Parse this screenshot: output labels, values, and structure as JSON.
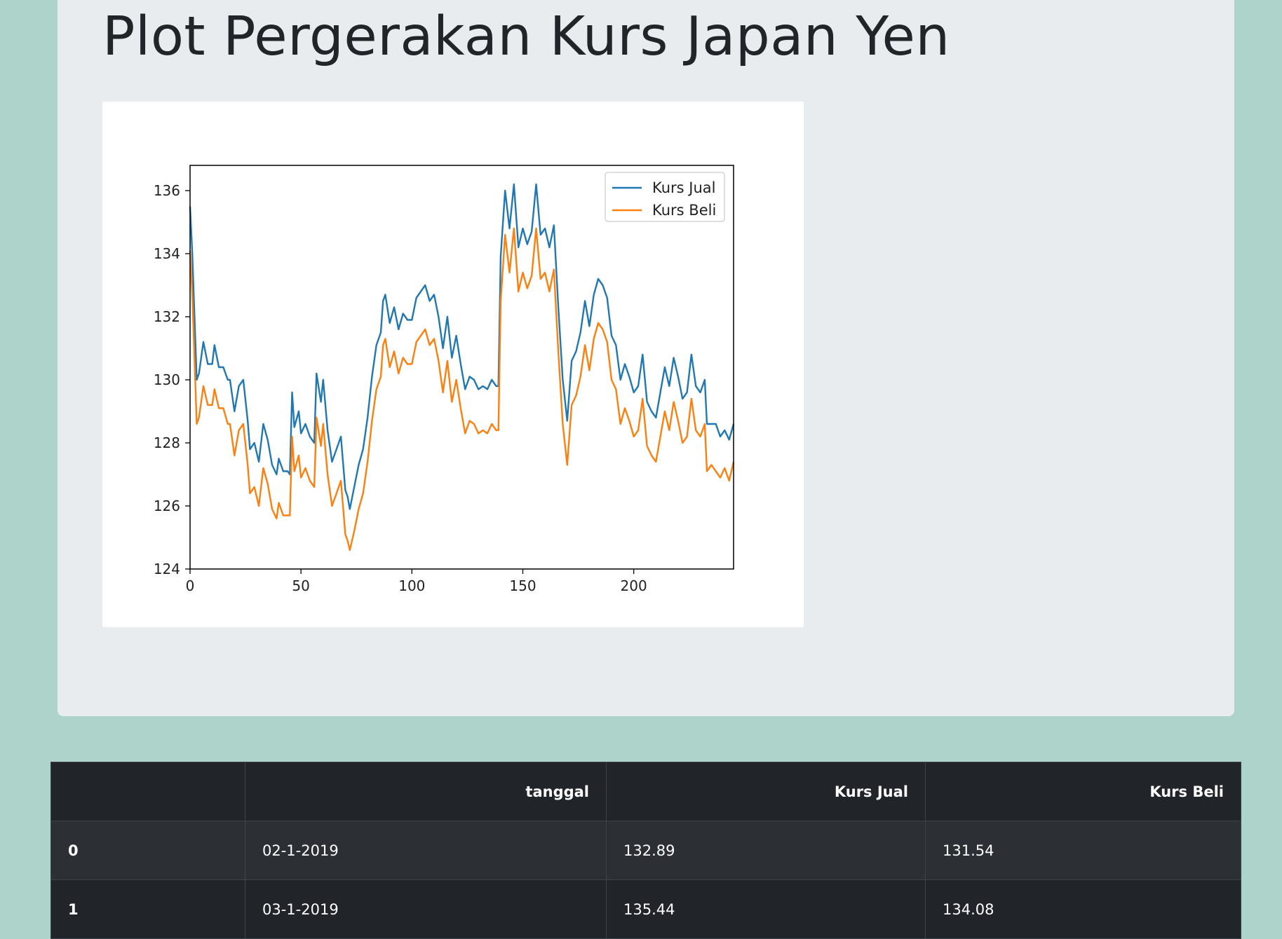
{
  "page": {
    "title": "Plot Pergerakan Kurs Japan Yen"
  },
  "chart_data": {
    "type": "line",
    "title": "",
    "xlabel": "",
    "ylabel": "",
    "xlim": [
      0,
      245
    ],
    "ylim": [
      124,
      136.8
    ],
    "xticks": [
      0,
      50,
      100,
      150,
      200
    ],
    "yticks": [
      124,
      126,
      128,
      130,
      132,
      134,
      136
    ],
    "legend_position": "top-right",
    "grid": false,
    "series": [
      {
        "name": "Kurs Jual",
        "color": "#1f77b4",
        "points": [
          [
            0,
            135.5
          ],
          [
            1,
            134.0
          ],
          [
            3,
            130.0
          ],
          [
            4,
            130.2
          ],
          [
            6,
            131.2
          ],
          [
            8,
            130.5
          ],
          [
            10,
            130.5
          ],
          [
            11,
            131.1
          ],
          [
            13,
            130.4
          ],
          [
            15,
            130.4
          ],
          [
            17,
            130.0
          ],
          [
            18,
            130.0
          ],
          [
            20,
            129.0
          ],
          [
            22,
            129.8
          ],
          [
            24,
            130.0
          ],
          [
            26,
            128.7
          ],
          [
            27,
            127.8
          ],
          [
            29,
            128.0
          ],
          [
            31,
            127.4
          ],
          [
            33,
            128.6
          ],
          [
            35,
            128.1
          ],
          [
            37,
            127.3
          ],
          [
            39,
            127.0
          ],
          [
            40,
            127.5
          ],
          [
            42,
            127.1
          ],
          [
            44,
            127.1
          ],
          [
            45,
            127.0
          ],
          [
            46,
            129.6
          ],
          [
            47,
            128.5
          ],
          [
            49,
            129.0
          ],
          [
            50,
            128.3
          ],
          [
            52,
            128.6
          ],
          [
            54,
            128.2
          ],
          [
            56,
            128.0
          ],
          [
            57,
            130.2
          ],
          [
            59,
            129.3
          ],
          [
            60,
            130.0
          ],
          [
            62,
            128.4
          ],
          [
            64,
            127.4
          ],
          [
            66,
            127.8
          ],
          [
            68,
            128.2
          ],
          [
            70,
            126.5
          ],
          [
            71,
            126.3
          ],
          [
            72,
            125.9
          ],
          [
            74,
            126.6
          ],
          [
            76,
            127.3
          ],
          [
            78,
            127.8
          ],
          [
            80,
            128.8
          ],
          [
            82,
            130.1
          ],
          [
            84,
            131.1
          ],
          [
            86,
            131.5
          ],
          [
            87,
            132.5
          ],
          [
            88,
            132.7
          ],
          [
            90,
            131.8
          ],
          [
            92,
            132.3
          ],
          [
            94,
            131.6
          ],
          [
            96,
            132.1
          ],
          [
            98,
            131.9
          ],
          [
            100,
            131.9
          ],
          [
            102,
            132.6
          ],
          [
            104,
            132.8
          ],
          [
            106,
            133.0
          ],
          [
            108,
            132.5
          ],
          [
            110,
            132.7
          ],
          [
            112,
            132.0
          ],
          [
            114,
            131.0
          ],
          [
            116,
            132.0
          ],
          [
            118,
            130.7
          ],
          [
            120,
            131.4
          ],
          [
            122,
            130.5
          ],
          [
            124,
            129.7
          ],
          [
            126,
            130.1
          ],
          [
            128,
            130.0
          ],
          [
            130,
            129.7
          ],
          [
            132,
            129.8
          ],
          [
            134,
            129.7
          ],
          [
            136,
            130.0
          ],
          [
            138,
            129.8
          ],
          [
            139,
            129.8
          ],
          [
            140,
            133.9
          ],
          [
            142,
            136.0
          ],
          [
            144,
            134.8
          ],
          [
            146,
            136.2
          ],
          [
            148,
            134.2
          ],
          [
            150,
            134.8
          ],
          [
            152,
            134.3
          ],
          [
            154,
            134.7
          ],
          [
            156,
            136.2
          ],
          [
            158,
            134.6
          ],
          [
            160,
            134.8
          ],
          [
            162,
            134.2
          ],
          [
            164,
            134.9
          ],
          [
            166,
            132.3
          ],
          [
            168,
            130.0
          ],
          [
            170,
            128.7
          ],
          [
            172,
            130.6
          ],
          [
            174,
            130.9
          ],
          [
            176,
            131.5
          ],
          [
            178,
            132.5
          ],
          [
            180,
            131.7
          ],
          [
            182,
            132.7
          ],
          [
            184,
            133.2
          ],
          [
            186,
            133.0
          ],
          [
            188,
            132.6
          ],
          [
            190,
            131.4
          ],
          [
            192,
            131.1
          ],
          [
            194,
            130.0
          ],
          [
            196,
            130.5
          ],
          [
            198,
            130.1
          ],
          [
            200,
            129.6
          ],
          [
            202,
            129.8
          ],
          [
            204,
            130.8
          ],
          [
            206,
            129.3
          ],
          [
            208,
            129.0
          ],
          [
            210,
            128.8
          ],
          [
            212,
            129.6
          ],
          [
            214,
            130.4
          ],
          [
            216,
            129.8
          ],
          [
            218,
            130.7
          ],
          [
            220,
            130.1
          ],
          [
            222,
            129.4
          ],
          [
            224,
            129.6
          ],
          [
            226,
            130.8
          ],
          [
            228,
            129.8
          ],
          [
            230,
            129.6
          ],
          [
            232,
            130.0
          ],
          [
            233,
            128.6
          ],
          [
            235,
            128.6
          ],
          [
            237,
            128.6
          ],
          [
            239,
            128.2
          ],
          [
            241,
            128.4
          ],
          [
            243,
            128.1
          ],
          [
            245,
            128.6
          ]
        ]
      },
      {
        "name": "Kurs Beli",
        "color": "#ff7f0e",
        "points": [
          [
            0,
            134.1
          ],
          [
            1,
            132.7
          ],
          [
            3,
            128.6
          ],
          [
            4,
            128.8
          ],
          [
            6,
            129.8
          ],
          [
            8,
            129.2
          ],
          [
            10,
            129.2
          ],
          [
            11,
            129.7
          ],
          [
            13,
            129.1
          ],
          [
            15,
            129.1
          ],
          [
            17,
            128.6
          ],
          [
            18,
            128.6
          ],
          [
            20,
            127.6
          ],
          [
            22,
            128.4
          ],
          [
            24,
            128.6
          ],
          [
            26,
            127.3
          ],
          [
            27,
            126.4
          ],
          [
            29,
            126.6
          ],
          [
            31,
            126.0
          ],
          [
            33,
            127.2
          ],
          [
            35,
            126.7
          ],
          [
            37,
            125.9
          ],
          [
            39,
            125.6
          ],
          [
            40,
            126.1
          ],
          [
            42,
            125.7
          ],
          [
            44,
            125.7
          ],
          [
            45,
            125.7
          ],
          [
            46,
            128.2
          ],
          [
            47,
            127.1
          ],
          [
            49,
            127.6
          ],
          [
            50,
            126.9
          ],
          [
            52,
            127.2
          ],
          [
            54,
            126.8
          ],
          [
            56,
            126.6
          ],
          [
            57,
            128.8
          ],
          [
            59,
            127.9
          ],
          [
            60,
            128.6
          ],
          [
            62,
            127.0
          ],
          [
            64,
            126.0
          ],
          [
            66,
            126.4
          ],
          [
            68,
            126.8
          ],
          [
            70,
            125.1
          ],
          [
            71,
            124.9
          ],
          [
            72,
            124.6
          ],
          [
            74,
            125.2
          ],
          [
            76,
            125.9
          ],
          [
            78,
            126.4
          ],
          [
            80,
            127.4
          ],
          [
            82,
            128.7
          ],
          [
            84,
            129.7
          ],
          [
            86,
            130.1
          ],
          [
            87,
            131.1
          ],
          [
            88,
            131.3
          ],
          [
            90,
            130.4
          ],
          [
            92,
            130.9
          ],
          [
            94,
            130.2
          ],
          [
            96,
            130.7
          ],
          [
            98,
            130.5
          ],
          [
            100,
            130.5
          ],
          [
            102,
            131.2
          ],
          [
            104,
            131.4
          ],
          [
            106,
            131.6
          ],
          [
            108,
            131.1
          ],
          [
            110,
            131.3
          ],
          [
            112,
            130.6
          ],
          [
            114,
            129.6
          ],
          [
            116,
            130.6
          ],
          [
            118,
            129.3
          ],
          [
            120,
            130.0
          ],
          [
            122,
            129.1
          ],
          [
            124,
            128.3
          ],
          [
            126,
            128.7
          ],
          [
            128,
            128.6
          ],
          [
            130,
            128.3
          ],
          [
            132,
            128.4
          ],
          [
            134,
            128.3
          ],
          [
            136,
            128.6
          ],
          [
            138,
            128.4
          ],
          [
            139,
            128.4
          ],
          [
            140,
            132.5
          ],
          [
            142,
            134.6
          ],
          [
            144,
            133.4
          ],
          [
            146,
            134.8
          ],
          [
            148,
            132.8
          ],
          [
            150,
            133.4
          ],
          [
            152,
            132.9
          ],
          [
            154,
            133.3
          ],
          [
            156,
            134.8
          ],
          [
            158,
            133.2
          ],
          [
            160,
            133.4
          ],
          [
            162,
            132.8
          ],
          [
            164,
            133.5
          ],
          [
            166,
            130.9
          ],
          [
            168,
            128.6
          ],
          [
            170,
            127.3
          ],
          [
            172,
            129.2
          ],
          [
            174,
            129.5
          ],
          [
            176,
            130.1
          ],
          [
            178,
            131.1
          ],
          [
            180,
            130.3
          ],
          [
            182,
            131.3
          ],
          [
            184,
            131.8
          ],
          [
            186,
            131.6
          ],
          [
            188,
            131.2
          ],
          [
            190,
            130.0
          ],
          [
            192,
            129.7
          ],
          [
            194,
            128.6
          ],
          [
            196,
            129.1
          ],
          [
            198,
            128.7
          ],
          [
            200,
            128.2
          ],
          [
            202,
            128.4
          ],
          [
            204,
            129.4
          ],
          [
            206,
            127.9
          ],
          [
            208,
            127.6
          ],
          [
            210,
            127.4
          ],
          [
            212,
            128.2
          ],
          [
            214,
            129.0
          ],
          [
            216,
            128.4
          ],
          [
            218,
            129.3
          ],
          [
            220,
            128.7
          ],
          [
            222,
            128.0
          ],
          [
            224,
            128.2
          ],
          [
            226,
            129.4
          ],
          [
            228,
            128.4
          ],
          [
            230,
            128.2
          ],
          [
            232,
            128.6
          ],
          [
            233,
            127.1
          ],
          [
            235,
            127.3
          ],
          [
            237,
            127.1
          ],
          [
            239,
            126.9
          ],
          [
            241,
            127.2
          ],
          [
            243,
            126.8
          ],
          [
            245,
            127.4
          ]
        ]
      }
    ]
  },
  "table": {
    "headers": [
      "",
      "tanggal",
      "Kurs Jual",
      "Kurs Beli"
    ],
    "rows": [
      [
        "0",
        "02-1-2019",
        "132.89",
        "131.54"
      ],
      [
        "1",
        "03-1-2019",
        "135.44",
        "134.08"
      ]
    ]
  }
}
